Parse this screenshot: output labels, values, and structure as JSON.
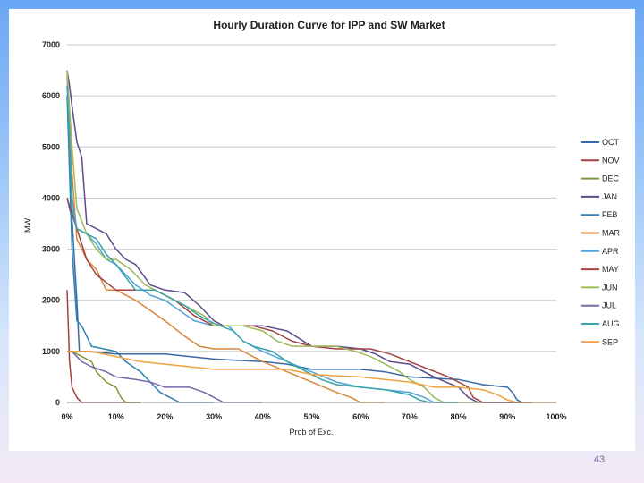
{
  "slide": {
    "number": "43"
  },
  "chart_data": {
    "type": "line",
    "title": "Hourly Duration Curve for IPP and SW Market",
    "xlabel": "Prob of Exc.",
    "ylabel": "MW",
    "xlim": [
      0,
      100
    ],
    "ylim": [
      0,
      7000
    ],
    "x_ticks": [
      "0%",
      "10%",
      "20%",
      "30%",
      "40%",
      "50%",
      "60%",
      "70%",
      "80%",
      "90%",
      "100%"
    ],
    "y_ticks": [
      "0",
      "1000",
      "2000",
      "3000",
      "4000",
      "5000",
      "6000",
      "7000"
    ],
    "grid": "horizontal",
    "legend_position": "right",
    "series": [
      {
        "name": "OCT",
        "color": "#376aa6",
        "points": [
          [
            0,
            4000
          ],
          [
            1,
            3600
          ],
          [
            2,
            2000
          ],
          [
            2.5,
            1000
          ],
          [
            4,
            1000
          ],
          [
            10,
            950
          ],
          [
            20,
            950
          ],
          [
            25,
            900
          ],
          [
            30,
            850
          ],
          [
            40,
            800
          ],
          [
            45,
            750
          ],
          [
            50,
            650
          ],
          [
            60,
            650
          ],
          [
            65,
            600
          ],
          [
            70,
            500
          ],
          [
            80,
            450
          ],
          [
            85,
            350
          ],
          [
            90,
            300
          ],
          [
            91,
            200
          ],
          [
            92,
            50
          ],
          [
            93,
            0
          ]
        ]
      },
      {
        "name": "NOV",
        "color": "#a04242",
        "points": [
          [
            0,
            2200
          ],
          [
            0.5,
            800
          ],
          [
            1,
            300
          ],
          [
            2,
            100
          ],
          [
            3,
            0
          ],
          [
            15,
            0
          ]
        ]
      },
      {
        "name": "DEC",
        "color": "#7c9a3a",
        "points": [
          [
            0,
            1000
          ],
          [
            1,
            1000
          ],
          [
            3,
            900
          ],
          [
            5,
            800
          ],
          [
            6,
            600
          ],
          [
            7,
            500
          ],
          [
            8,
            400
          ],
          [
            9,
            350
          ],
          [
            10,
            300
          ],
          [
            11,
            100
          ],
          [
            12,
            0
          ],
          [
            15,
            0
          ]
        ]
      },
      {
        "name": "JAN",
        "color": "#5e4a8c",
        "points": [
          [
            0,
            6500
          ],
          [
            0.5,
            6200
          ],
          [
            1,
            5800
          ],
          [
            2,
            5100
          ],
          [
            3,
            4800
          ],
          [
            4,
            3500
          ],
          [
            6,
            3400
          ],
          [
            8,
            3300
          ],
          [
            10,
            3000
          ],
          [
            12,
            2800
          ],
          [
            14,
            2700
          ],
          [
            17,
            2300
          ],
          [
            20,
            2200
          ],
          [
            24,
            2150
          ],
          [
            27,
            1900
          ],
          [
            30,
            1600
          ],
          [
            32,
            1500
          ],
          [
            36,
            1500
          ],
          [
            40,
            1500
          ],
          [
            45,
            1400
          ],
          [
            50,
            1100
          ],
          [
            55,
            1100
          ],
          [
            60,
            1050
          ],
          [
            63,
            950
          ],
          [
            66,
            800
          ],
          [
            70,
            750
          ],
          [
            75,
            500
          ],
          [
            80,
            300
          ],
          [
            82,
            100
          ],
          [
            84,
            0
          ],
          [
            95,
            0
          ]
        ]
      },
      {
        "name": "FEB",
        "color": "#2c7fb0",
        "points": [
          [
            0,
            6000
          ],
          [
            1,
            3000
          ],
          [
            2,
            1600
          ],
          [
            3,
            1500
          ],
          [
            5,
            1100
          ],
          [
            10,
            1000
          ],
          [
            12,
            800
          ],
          [
            15,
            600
          ],
          [
            17,
            400
          ],
          [
            19,
            200
          ],
          [
            21,
            100
          ],
          [
            23,
            0
          ],
          [
            30,
            0
          ]
        ]
      },
      {
        "name": "MAR",
        "color": "#d6863a",
        "points": [
          [
            0,
            6400
          ],
          [
            1,
            4500
          ],
          [
            2,
            3200
          ],
          [
            4,
            2800
          ],
          [
            6,
            2600
          ],
          [
            8,
            2200
          ],
          [
            10,
            2200
          ],
          [
            14,
            2000
          ],
          [
            17,
            1800
          ],
          [
            20,
            1600
          ],
          [
            24,
            1300
          ],
          [
            27,
            1100
          ],
          [
            30,
            1050
          ],
          [
            35,
            1050
          ],
          [
            40,
            800
          ],
          [
            45,
            600
          ],
          [
            50,
            400
          ],
          [
            55,
            200
          ],
          [
            58,
            100
          ],
          [
            60,
            0
          ],
          [
            65,
            0
          ]
        ]
      },
      {
        "name": "APR",
        "color": "#4fa3d8",
        "points": [
          [
            0,
            6500
          ],
          [
            1,
            4000
          ],
          [
            2,
            3400
          ],
          [
            4,
            3300
          ],
          [
            6,
            3100
          ],
          [
            8,
            2800
          ],
          [
            10,
            2700
          ],
          [
            14,
            2300
          ],
          [
            17,
            2100
          ],
          [
            20,
            2000
          ],
          [
            23,
            1800
          ],
          [
            26,
            1600
          ],
          [
            30,
            1500
          ],
          [
            33,
            1500
          ],
          [
            36,
            1200
          ],
          [
            40,
            1000
          ],
          [
            45,
            800
          ],
          [
            50,
            600
          ],
          [
            55,
            400
          ],
          [
            60,
            300
          ],
          [
            65,
            250
          ],
          [
            70,
            200
          ],
          [
            73,
            100
          ],
          [
            75,
            0
          ],
          [
            80,
            0
          ]
        ]
      },
      {
        "name": "MAY",
        "color": "#a04242",
        "points": [
          [
            0,
            4000
          ],
          [
            2,
            3400
          ],
          [
            4,
            2800
          ],
          [
            6,
            2500
          ],
          [
            10,
            2200
          ],
          [
            14,
            2200
          ],
          [
            18,
            2200
          ],
          [
            22,
            2000
          ],
          [
            26,
            1700
          ],
          [
            30,
            1500
          ],
          [
            38,
            1500
          ],
          [
            42,
            1400
          ],
          [
            46,
            1200
          ],
          [
            50,
            1100
          ],
          [
            55,
            1050
          ],
          [
            60,
            1050
          ],
          [
            62,
            1050
          ],
          [
            66,
            950
          ],
          [
            70,
            800
          ],
          [
            74,
            650
          ],
          [
            78,
            500
          ],
          [
            80,
            400
          ],
          [
            82,
            300
          ],
          [
            83,
            100
          ],
          [
            85,
            0
          ],
          [
            95,
            0
          ]
        ]
      },
      {
        "name": "JUN",
        "color": "#9bbb59",
        "points": [
          [
            0,
            6500
          ],
          [
            1,
            5000
          ],
          [
            2,
            3800
          ],
          [
            4,
            3300
          ],
          [
            6,
            3000
          ],
          [
            8,
            2800
          ],
          [
            10,
            2800
          ],
          [
            13,
            2600
          ],
          [
            16,
            2300
          ],
          [
            20,
            2100
          ],
          [
            24,
            1900
          ],
          [
            28,
            1700
          ],
          [
            30,
            1500
          ],
          [
            36,
            1500
          ],
          [
            40,
            1400
          ],
          [
            43,
            1200
          ],
          [
            46,
            1100
          ],
          [
            50,
            1100
          ],
          [
            55,
            1100
          ],
          [
            59,
            1000
          ],
          [
            62,
            900
          ],
          [
            65,
            750
          ],
          [
            68,
            600
          ],
          [
            70,
            450
          ],
          [
            73,
            300
          ],
          [
            75,
            100
          ],
          [
            77,
            0
          ],
          [
            85,
            0
          ]
        ]
      },
      {
        "name": "JUL",
        "color": "#7a66a8",
        "points": [
          [
            0,
            1000
          ],
          [
            1,
            1000
          ],
          [
            2,
            900
          ],
          [
            3,
            800
          ],
          [
            5,
            700
          ],
          [
            8,
            600
          ],
          [
            10,
            500
          ],
          [
            14,
            450
          ],
          [
            17,
            400
          ],
          [
            20,
            300
          ],
          [
            25,
            300
          ],
          [
            28,
            200
          ],
          [
            30,
            100
          ],
          [
            32,
            0
          ],
          [
            40,
            0
          ]
        ]
      },
      {
        "name": "AUG",
        "color": "#3aa3a8",
        "points": [
          [
            0,
            6200
          ],
          [
            1,
            3800
          ],
          [
            2,
            3400
          ],
          [
            4,
            3300
          ],
          [
            6,
            3200
          ],
          [
            8,
            2900
          ],
          [
            10,
            2700
          ],
          [
            14,
            2200
          ],
          [
            18,
            2200
          ],
          [
            20,
            2100
          ],
          [
            24,
            1900
          ],
          [
            27,
            1700
          ],
          [
            30,
            1550
          ],
          [
            34,
            1400
          ],
          [
            36,
            1200
          ],
          [
            38,
            1100
          ],
          [
            42,
            1000
          ],
          [
            45,
            800
          ],
          [
            48,
            650
          ],
          [
            52,
            450
          ],
          [
            55,
            350
          ],
          [
            60,
            300
          ],
          [
            65,
            250
          ],
          [
            70,
            150
          ],
          [
            72,
            50
          ],
          [
            74,
            0
          ],
          [
            80,
            0
          ]
        ]
      },
      {
        "name": "SEP",
        "color": "#f0a23e",
        "points": [
          [
            0,
            1000
          ],
          [
            1,
            1000
          ],
          [
            5,
            1000
          ],
          [
            10,
            900
          ],
          [
            15,
            800
          ],
          [
            20,
            750
          ],
          [
            25,
            700
          ],
          [
            30,
            650
          ],
          [
            45,
            650
          ],
          [
            50,
            550
          ],
          [
            60,
            500
          ],
          [
            65,
            450
          ],
          [
            70,
            400
          ],
          [
            75,
            300
          ],
          [
            80,
            300
          ],
          [
            85,
            250
          ],
          [
            88,
            150
          ],
          [
            90,
            50
          ],
          [
            92,
            0
          ],
          [
            100,
            0
          ]
        ]
      }
    ]
  }
}
